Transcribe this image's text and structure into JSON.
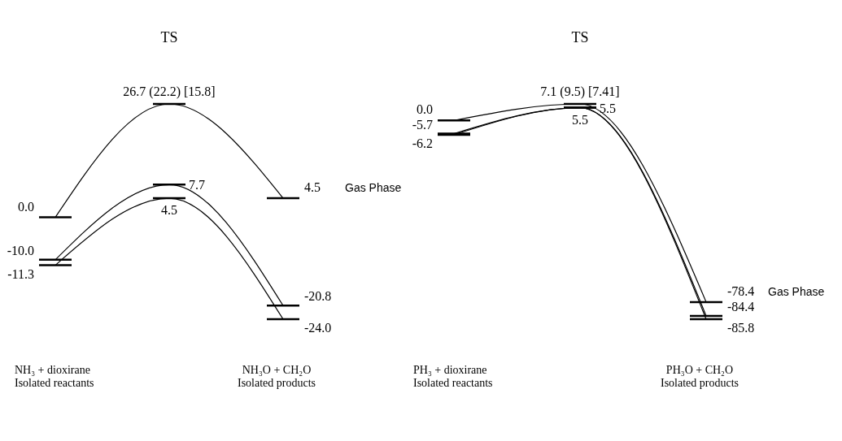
{
  "chart_data": [
    {
      "type": "line",
      "categories": [
        null,
        null,
        null
      ],
      "series": [
        {
          "name": "Gas Phase",
          "color": "#000000",
          "values": [
            0.0,
            26.7,
            4.5
          ],
          "value_labels": [
            "0.0",
            "26.7  (22.2)  [15.8]",
            "4.5"
          ]
        },
        {
          "color": "#000000",
          "values": [
            -10.0,
            7.7,
            -20.8
          ],
          "value_labels": [
            "-10.0",
            "7.7",
            "-20.8"
          ]
        },
        {
          "color": "#000000",
          "values": [
            -11.3,
            4.5,
            -24.0
          ],
          "value_labels": [
            "-11.3",
            "4.5",
            "-24.0"
          ]
        }
      ],
      "annotations": [
        "TS",
        "NH₃ + dioxirane",
        "Isolated reactants",
        "NH₃O + CH₂O",
        "Isolated products"
      ]
    },
    {
      "type": "line",
      "categories": [
        null,
        null,
        null
      ],
      "series": [
        {
          "name": "Gas Phase",
          "color": "#000000",
          "values": [
            0.0,
            7.1,
            -78.4
          ],
          "value_labels": [
            "0.0",
            "7.1  (9.5)  [7.41]",
            "-78.4"
          ]
        },
        {
          "color": "#000000",
          "values": [
            -5.7,
            5.5,
            -84.4
          ],
          "value_labels": [
            "-5.7",
            "5.5",
            "-84.4"
          ]
        },
        {
          "color": "#000000",
          "values": [
            -6.2,
            5.5,
            -85.8
          ],
          "value_labels": [
            "-6.2",
            "5.5",
            "-85.8"
          ]
        }
      ],
      "annotations": [
        "TS",
        "PH₃ + dioxirane",
        "Isolated reactants",
        "PH₃O + CH₂O",
        "Isolated products"
      ]
    }
  ]
}
